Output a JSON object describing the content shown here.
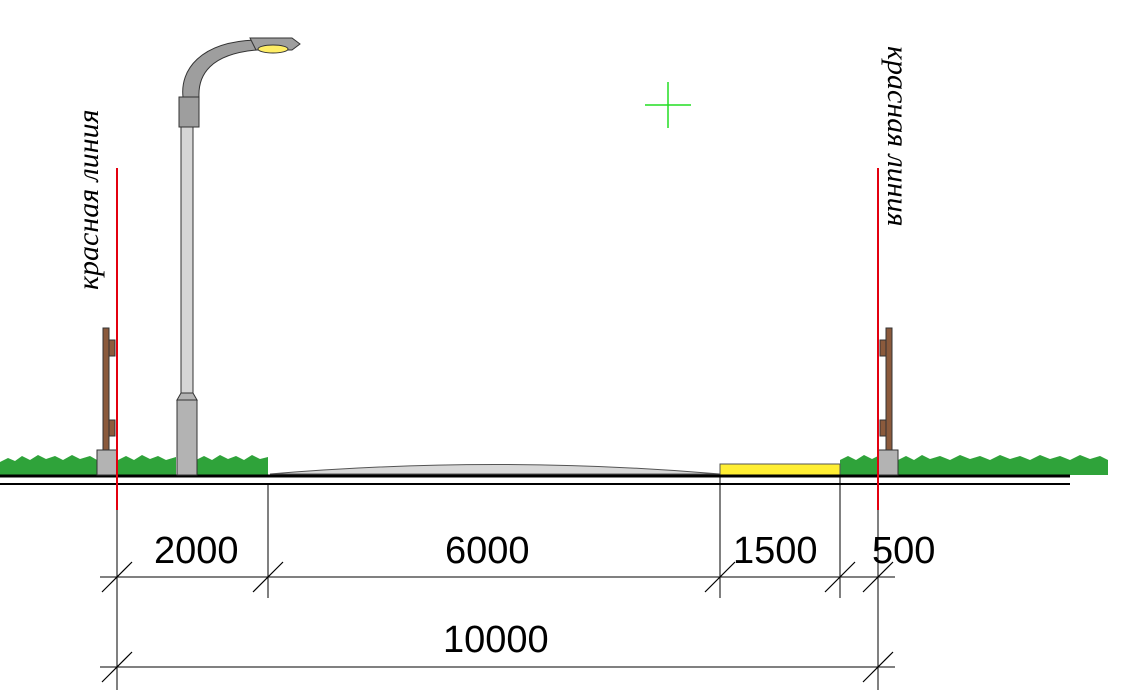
{
  "labels": {
    "red_line_left": "красная линия",
    "red_line_right": "красная линия"
  },
  "dimensions": {
    "segments": [
      "2000",
      "6000",
      "1500",
      "500"
    ],
    "total": "10000"
  },
  "colors": {
    "red_line": "#e3000f",
    "grass": "#2fa33a",
    "road": "#d8d8d8",
    "sidewalk": "#ffee33",
    "fence_post": "#8b5a3c",
    "ground": "#000000",
    "cursor": "#22dd22"
  }
}
